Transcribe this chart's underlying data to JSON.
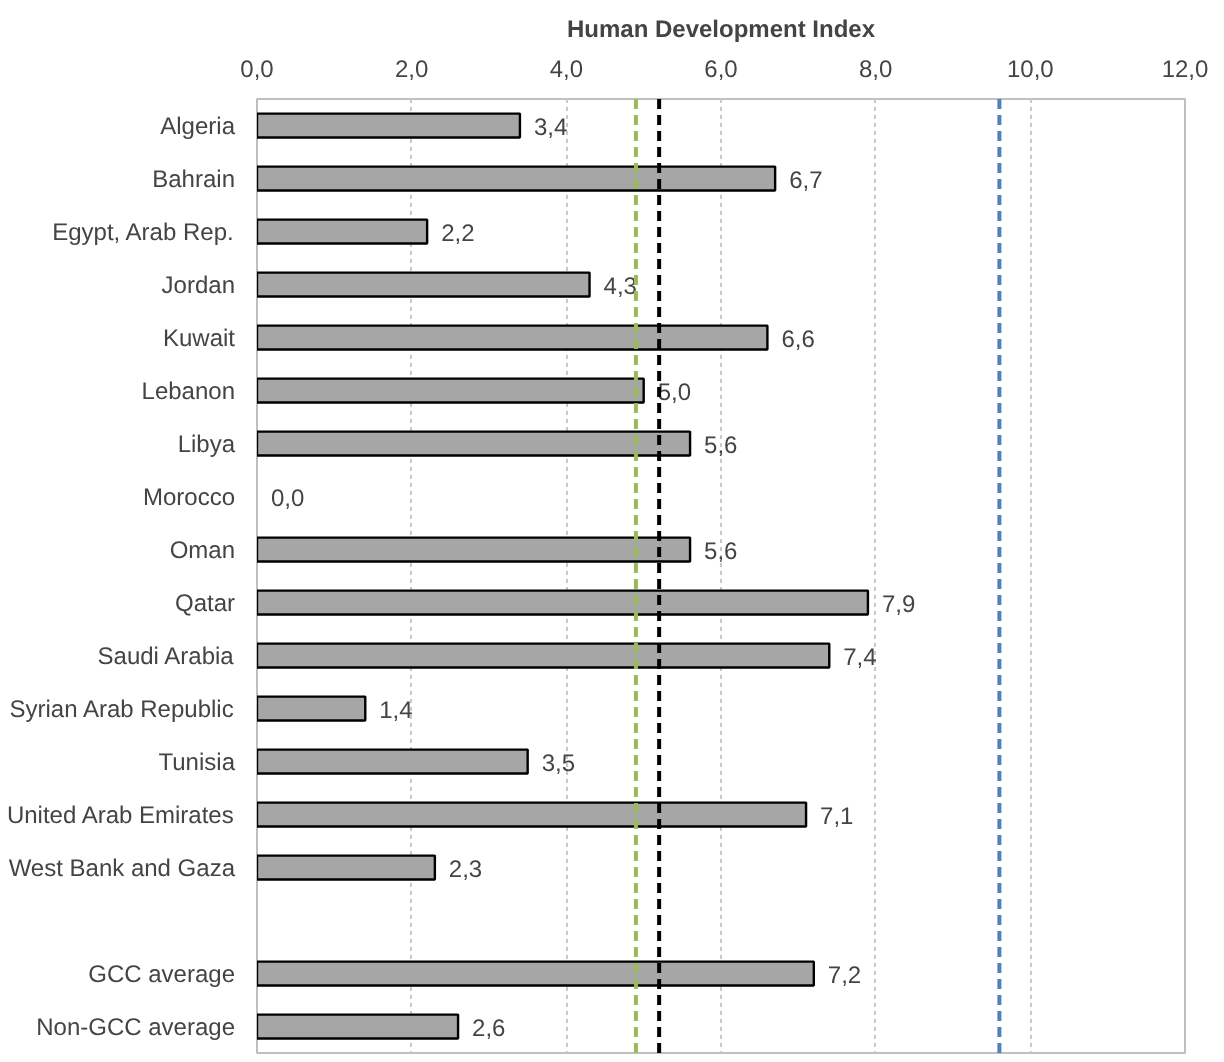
{
  "chart_data": {
    "type": "bar",
    "orientation": "horizontal",
    "title": "Human Development Index",
    "categories": [
      "Algeria",
      "Bahrain",
      "Egypt, Arab Rep.",
      "Jordan",
      "Kuwait",
      "Lebanon",
      "Libya",
      "Morocco",
      "Oman",
      "Qatar",
      "Saudi Arabia",
      "Syrian Arab Republic",
      "Tunisia",
      "United Arab Emirates",
      "West Bank and Gaza",
      null,
      "GCC average",
      "Non-GCC average"
    ],
    "values": [
      3.4,
      6.7,
      2.2,
      4.3,
      6.6,
      5.0,
      5.6,
      0.0,
      5.6,
      7.9,
      7.4,
      1.4,
      3.5,
      7.1,
      2.3,
      null,
      7.2,
      2.6
    ],
    "value_labels": [
      "3,4",
      "6,7",
      "2,2",
      "4,3",
      "6,6",
      "5,0",
      "5,6",
      "0,0",
      "5,6",
      "7,9",
      "7,4",
      "1,4",
      "3,5",
      "7,1",
      "2,3",
      null,
      "7,2",
      "2,6"
    ],
    "color": "#a6a6a6",
    "xlim": [
      0,
      12
    ],
    "xticks": [
      {
        "value": 0,
        "label": "0,0"
      },
      {
        "value": 2,
        "label": "2,0"
      },
      {
        "value": 4,
        "label": "4,0"
      },
      {
        "value": 6,
        "label": "6,0"
      },
      {
        "value": 8,
        "label": "8,0"
      },
      {
        "value": 10,
        "label": "10,0"
      },
      {
        "value": 12,
        "label": "12,0"
      }
    ],
    "grid": "x",
    "ref_lines": [
      {
        "axis": "x",
        "value": 4.9,
        "color": "#9bbb59",
        "line_style": "dashed"
      },
      {
        "axis": "x",
        "value": 5.2,
        "color": "#000000",
        "line_style": "dashed"
      },
      {
        "axis": "x",
        "value": 9.6,
        "color": "#4f81bd",
        "line_style": "dashed"
      }
    ]
  }
}
